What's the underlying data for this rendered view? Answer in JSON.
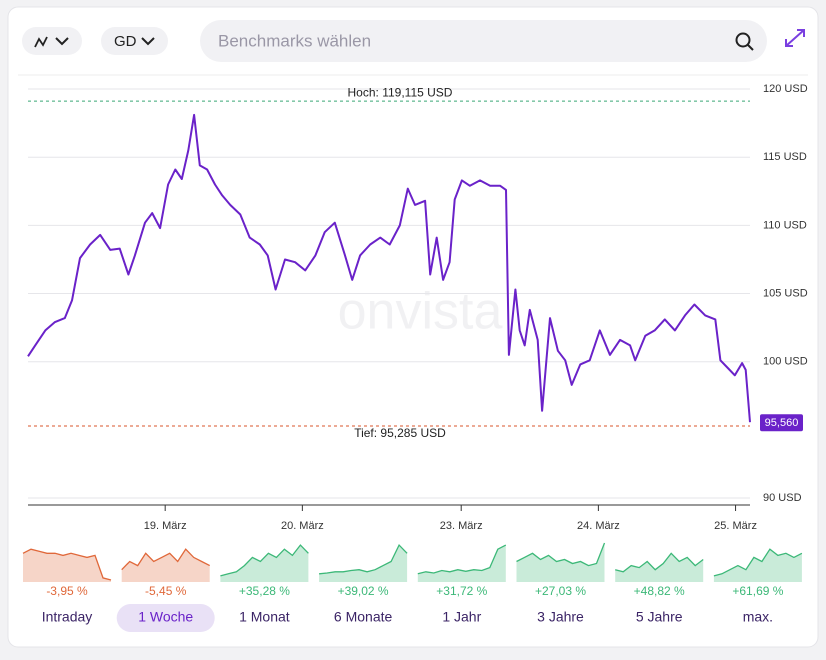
{
  "toolbar": {
    "range_button": "GD",
    "search_placeholder": "Benchmarks wählen"
  },
  "watermark": "onvista",
  "chart_data": {
    "type": "line",
    "color": "#6a22c9",
    "x": [
      0,
      1.0,
      2.4,
      3.7,
      5.1,
      6.1,
      7.2,
      8.6,
      10.0,
      11.4,
      12.7,
      13.9,
      14.8,
      16.2,
      17.2,
      18.3,
      19.4,
      20.4,
      21.3,
      22.2,
      23.0,
      23.8,
      24.8,
      25.9,
      26.9,
      28.0,
      29.4,
      30.7,
      32.1,
      33.2,
      34.3,
      35.6,
      37.0,
      38.4,
      39.8,
      41.1,
      42.5,
      43.9,
      44.9,
      46.0,
      47.4,
      48.8,
      50.1,
      51.5,
      52.6,
      53.6,
      55.0,
      55.7,
      56.6,
      57.5,
      58.4,
      59.1,
      60.1,
      61.2,
      62.6,
      64.0,
      65.4,
      66.2,
      66.6,
      67.5,
      68.1,
      68.8,
      69.5,
      70.6,
      71.2,
      72.3,
      73.4,
      74.4,
      75.3,
      76.5,
      77.8,
      79.2,
      80.6,
      82.0,
      83.4,
      84.1,
      85.5,
      86.8,
      88.2,
      89.6,
      91.0,
      92.3,
      93.8,
      95.2,
      95.9,
      97.0,
      97.9,
      98.9,
      99.4,
      100
    ],
    "values": [
      100.4,
      101.2,
      102.3,
      102.9,
      103.2,
      104.5,
      107.6,
      108.6,
      109.3,
      108.2,
      108.3,
      106.4,
      107.8,
      110.2,
      110.9,
      109.8,
      113.0,
      114.1,
      113.4,
      115.5,
      118.1,
      114.4,
      114.1,
      113.0,
      112.2,
      111.5,
      110.8,
      109.1,
      108.6,
      107.8,
      105.3,
      107.5,
      107.3,
      106.7,
      107.8,
      109.5,
      110.2,
      107.8,
      106.0,
      107.8,
      108.6,
      109.1,
      108.6,
      110.0,
      112.7,
      111.5,
      111.8,
      106.4,
      109.1,
      106.0,
      107.3,
      111.9,
      113.3,
      112.9,
      113.3,
      112.9,
      112.9,
      112.6,
      100.5,
      105.3,
      102.3,
      101.2,
      103.8,
      101.6,
      96.4,
      103.2,
      100.8,
      100.1,
      98.3,
      99.8,
      100.1,
      102.3,
      100.5,
      101.6,
      101.2,
      100.1,
      101.9,
      102.3,
      103.1,
      102.3,
      103.4,
      104.2,
      103.4,
      103.1,
      100.1,
      99.5,
      99.0,
      99.9,
      99.4,
      95.56
    ],
    "xlim": [
      0,
      100
    ],
    "xticks": [
      {
        "value": 19,
        "label": "19. März"
      },
      {
        "value": 38,
        "label": "20. März"
      },
      {
        "value": 60,
        "label": "23. März"
      },
      {
        "value": 79,
        "label": "24. März"
      },
      {
        "value": 98,
        "label": "25. März"
      }
    ],
    "ylim": [
      89.49,
      121.03
    ],
    "yticks": [
      {
        "value": 90,
        "label": "90 USD"
      },
      {
        "value": 100,
        "label": "100 USD"
      },
      {
        "value": 105,
        "label": "105 USD"
      },
      {
        "value": 110,
        "label": "110 USD"
      },
      {
        "value": 115,
        "label": "115 USD"
      },
      {
        "value": 120,
        "label": "120 USD"
      }
    ],
    "grid": true,
    "high": {
      "value": 119.115,
      "label": "Hoch: 119,115 USD",
      "color": "#3aa876"
    },
    "low": {
      "value": 95.285,
      "label": "Tief: 95,285 USD",
      "color": "#d9542b"
    },
    "last": {
      "value": 95.56,
      "label": "95,560"
    }
  },
  "periods": [
    {
      "label": "Intraday",
      "change": "-3,95 %",
      "color": "#e0683a"
    },
    {
      "label": "1 Woche",
      "change": "-5,45 %",
      "color": "#e0683a",
      "selected": true
    },
    {
      "label": "1 Monat",
      "change": "+35,28 %",
      "color": "#3cb878"
    },
    {
      "label": "6 Monate",
      "change": "+39,02 %",
      "color": "#3cb878"
    },
    {
      "label": "1 Jahr",
      "change": "+31,72 %",
      "color": "#3cb878"
    },
    {
      "label": "3 Jahre",
      "change": "+27,03 %",
      "color": "#3cb878"
    },
    {
      "label": "5 Jahre",
      "change": "+48,82 %",
      "color": "#3cb878"
    },
    {
      "label": "max.",
      "change": "+61,69 %",
      "color": "#3cb878"
    }
  ]
}
